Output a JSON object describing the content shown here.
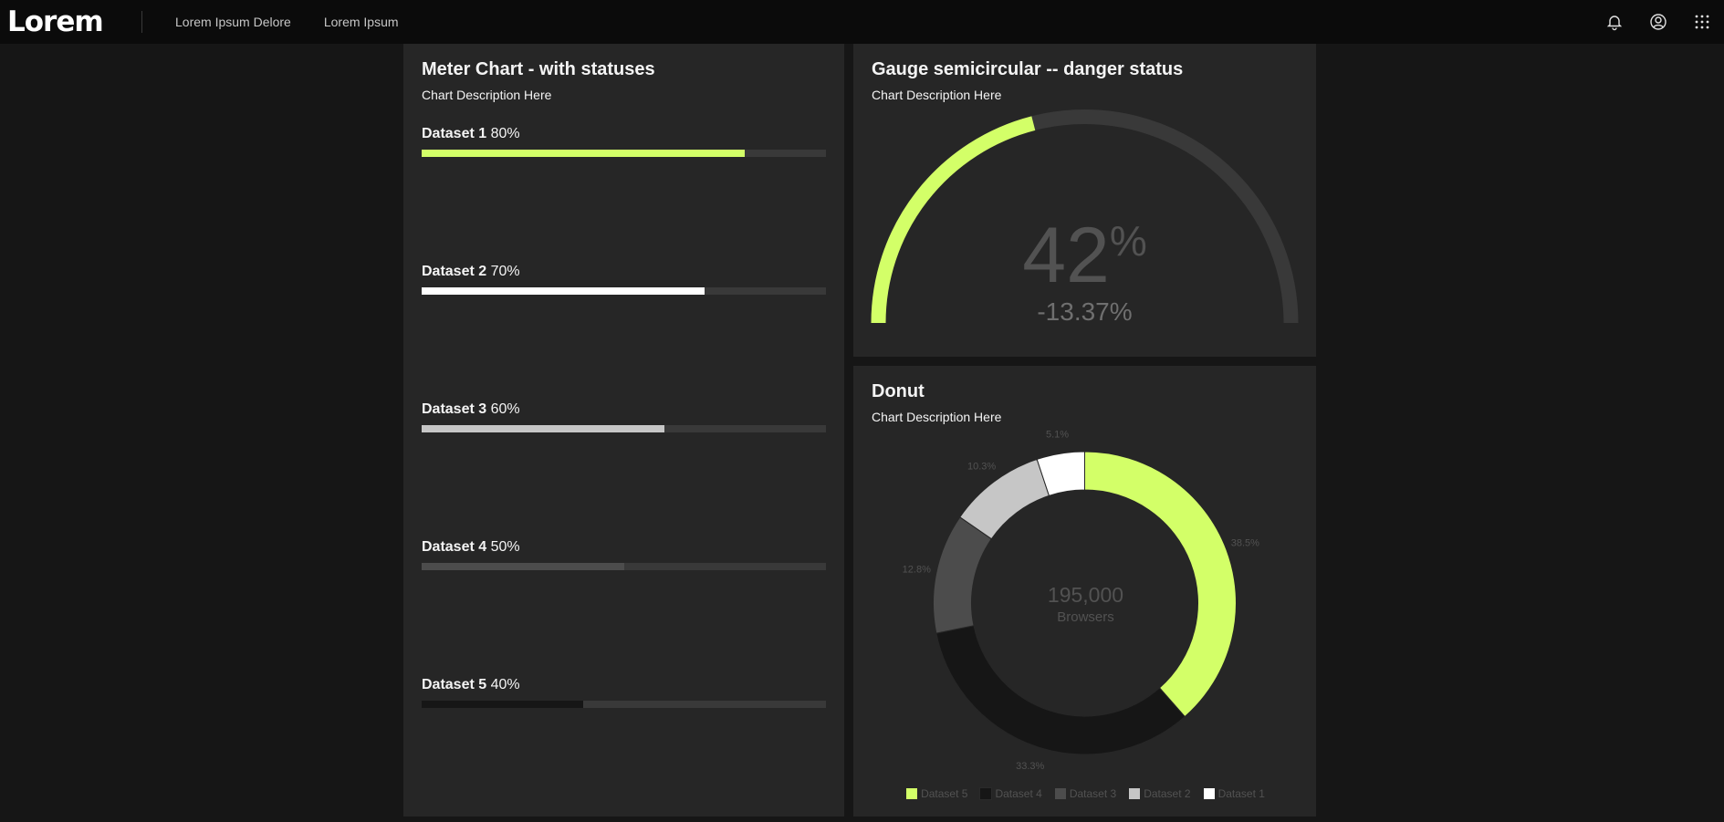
{
  "header": {
    "brand": "Lorem",
    "nav": [
      "Lorem Ipsum Delore",
      "Lorem Ipsum"
    ],
    "actions": [
      "notification-icon",
      "user-avatar-icon",
      "app-switcher-icon"
    ]
  },
  "colors": {
    "accent": "#d3ff68",
    "bg": "#161616",
    "tile": "#262626",
    "track": "#393939"
  },
  "meter": {
    "title": "Meter Chart - with statuses",
    "description": "Chart Description Here",
    "datasets": [
      {
        "name": "Dataset 1",
        "percent_label": "80%",
        "value": 80,
        "color": "#d3ff68"
      },
      {
        "name": "Dataset 2",
        "percent_label": "70%",
        "value": 70,
        "color": "#ffffff"
      },
      {
        "name": "Dataset 3",
        "percent_label": "60%",
        "value": 60,
        "color": "#c6c6c6"
      },
      {
        "name": "Dataset 4",
        "percent_label": "50%",
        "value": 50,
        "color": "#4c4c4c"
      },
      {
        "name": "Dataset 5",
        "percent_label": "40%",
        "value": 40,
        "color": "#161616"
      }
    ]
  },
  "gauge": {
    "title": "Gauge semicircular -- danger status",
    "description": "Chart Description Here",
    "value": 42,
    "value_label": "42",
    "unit": "%",
    "delta": "-13.37%",
    "max": 100,
    "color": "#d3ff68"
  },
  "donut": {
    "title": "Donut",
    "description": "Chart Description Here",
    "total_label": "195,000",
    "caption": "Browsers",
    "slices": [
      {
        "name": "Dataset 5",
        "percent": 38.5,
        "label": "38.5%",
        "color": "#d3ff68"
      },
      {
        "name": "Dataset 4",
        "percent": 33.3,
        "label": "33.3%",
        "color": "#161616"
      },
      {
        "name": "Dataset 3",
        "percent": 12.8,
        "label": "12.8%",
        "color": "#4c4c4c"
      },
      {
        "name": "Dataset 2",
        "percent": 10.3,
        "label": "10.3%",
        "color": "#c6c6c6"
      },
      {
        "name": "Dataset 1",
        "percent": 5.1,
        "label": "5.1%",
        "color": "#ffffff"
      }
    ]
  },
  "chart_data": [
    {
      "type": "bar",
      "title": "Meter Chart - with statuses",
      "subtitle": "Chart Description Here",
      "categories": [
        "Dataset 1",
        "Dataset 2",
        "Dataset 3",
        "Dataset 4",
        "Dataset 5"
      ],
      "values": [
        80,
        70,
        60,
        50,
        40
      ],
      "unit": "%",
      "ylim": [
        0,
        100
      ]
    },
    {
      "type": "gauge",
      "title": "Gauge semicircular -- danger status",
      "subtitle": "Chart Description Here",
      "value": 42,
      "delta": -13.37,
      "range": [
        0,
        100
      ]
    },
    {
      "type": "pie",
      "title": "Donut",
      "subtitle": "Chart Description Here",
      "center_value": 195000,
      "center_label": "Browsers",
      "categories": [
        "Dataset 5",
        "Dataset 4",
        "Dataset 3",
        "Dataset 2",
        "Dataset 1"
      ],
      "values": [
        38.5,
        33.3,
        12.8,
        10.3,
        5.1
      ],
      "legend": "bottom"
    }
  ]
}
